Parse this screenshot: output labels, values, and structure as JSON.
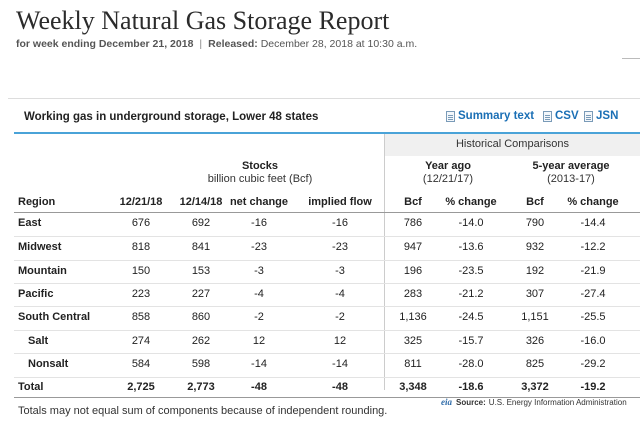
{
  "header": {
    "title": "Weekly Natural Gas Storage Report",
    "week_label": "for week ending December 21, 2018",
    "separator": "|",
    "released_label": "Released:",
    "released_value": "December 28, 2018 at 10:30 a.m."
  },
  "table": {
    "caption": "Working gas in underground storage, Lower 48 states",
    "downloads": [
      "Summary text",
      "CSV",
      "JSN"
    ],
    "historical_label": "Historical Comparisons",
    "stocks_title": "Stocks",
    "stocks_unit": "billion cubic feet (Bcf)",
    "year_ago_title": "Year ago",
    "year_ago_date": "(12/21/17)",
    "five_year_title": "5-year average",
    "five_year_range": "(2013-17)",
    "columns": [
      "Region",
      "12/21/18",
      "12/14/18",
      "net change",
      "implied flow",
      "Bcf",
      "% change",
      "Bcf",
      "% change"
    ],
    "rows": [
      [
        "East",
        "676",
        "692",
        "-16",
        "-16",
        "786",
        "-14.0",
        "790",
        "-14.4"
      ],
      [
        "Midwest",
        "818",
        "841",
        "-23",
        "-23",
        "947",
        "-13.6",
        "932",
        "-12.2"
      ],
      [
        "Mountain",
        "150",
        "153",
        "-3",
        "-3",
        "196",
        "-23.5",
        "192",
        "-21.9"
      ],
      [
        "Pacific",
        "223",
        "227",
        "-4",
        "-4",
        "283",
        "-21.2",
        "307",
        "-27.4"
      ],
      [
        "South Central",
        "858",
        "860",
        "-2",
        "-2",
        "1,136",
        "-24.5",
        "1,151",
        "-25.5"
      ],
      [
        "Salt",
        "274",
        "262",
        "12",
        "12",
        "325",
        "-15.7",
        "326",
        "-16.0"
      ],
      [
        "Nonsalt",
        "584",
        "598",
        "-14",
        "-14",
        "811",
        "-28.0",
        "825",
        "-29.2"
      ],
      [
        "Total",
        "2,725",
        "2,773",
        "-48",
        "-48",
        "3,348",
        "-18.6",
        "3,372",
        "-19.2"
      ]
    ]
  },
  "footer": {
    "note": "Totals may not equal sum of components because of independent rounding.",
    "source_logo": "eia",
    "source_label": "Source:",
    "source_value": "U.S. Energy Information Administration"
  },
  "colors": {
    "accent_line": "#4aa3d8",
    "link": "#1a6fb5"
  }
}
